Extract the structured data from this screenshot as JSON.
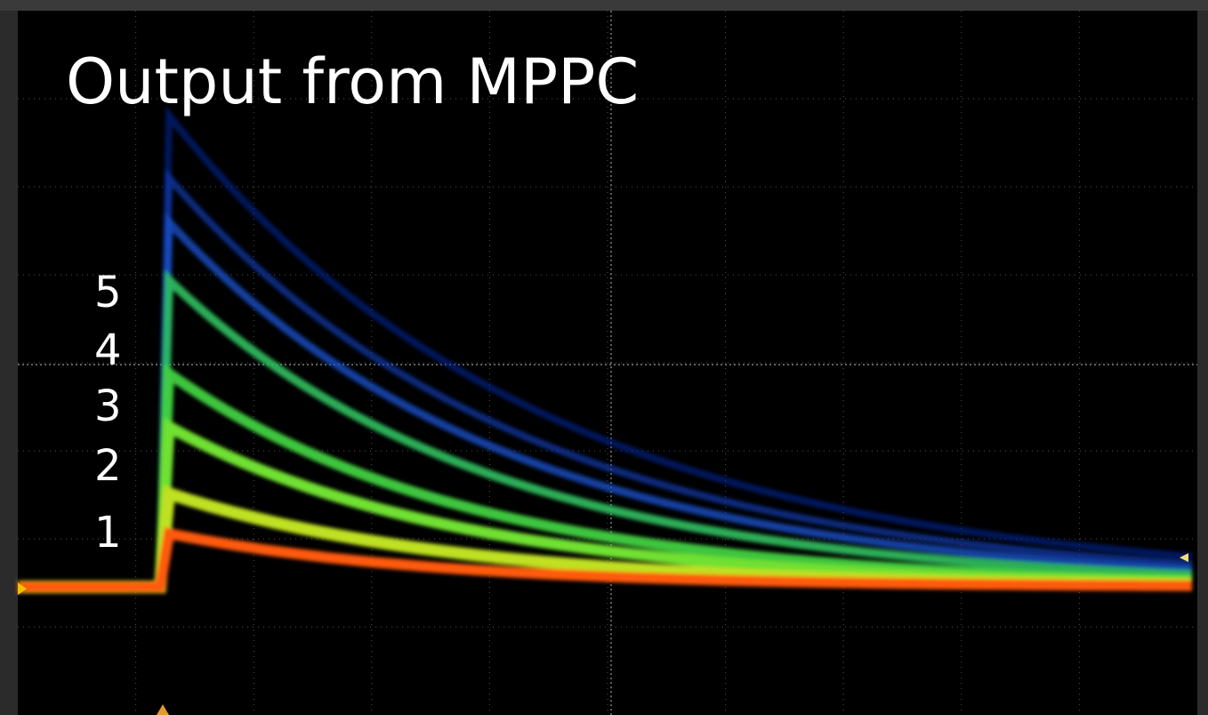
{
  "title": "Output from MPPC",
  "peak_labels": [
    "5",
    "4",
    "3",
    "2",
    "1"
  ]
}
